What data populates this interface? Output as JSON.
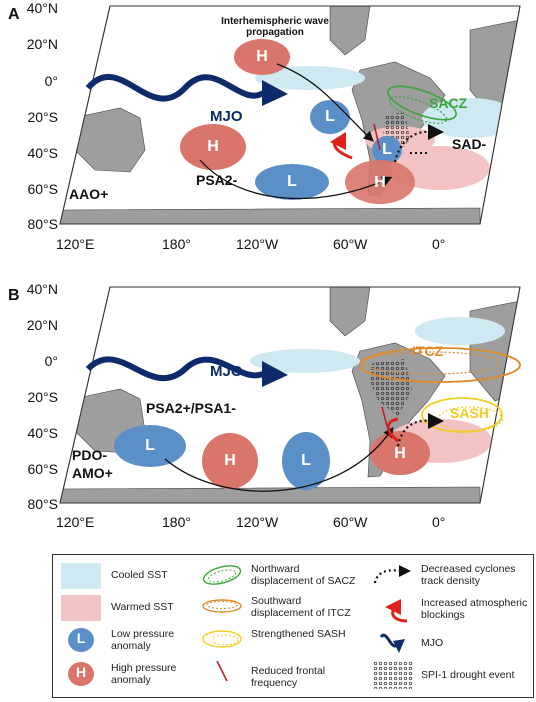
{
  "panel_a": {
    "letter": "A",
    "lat_labels": [
      "40°N",
      "20°N",
      "0°",
      "20°S",
      "40°S",
      "60°S",
      "80°S"
    ],
    "lon_labels": [
      "120°E",
      "180°",
      "120°W",
      "60°W",
      "0°"
    ],
    "wave_note": "Interhemispheric wave propagation",
    "mjo": "MJO",
    "sacz": "SACZ",
    "sad": "SAD-",
    "psa": "PSA2-",
    "aao": "AAO+",
    "high": "H",
    "low": "L"
  },
  "panel_b": {
    "letter": "B",
    "lat_labels": [
      "40°N",
      "20°N",
      "0°",
      "20°S",
      "40°S",
      "60°S",
      "80°S"
    ],
    "lon_labels": [
      "120°E",
      "180°",
      "120°W",
      "60°W",
      "0°"
    ],
    "mjo": "MJO",
    "itcz": "ITCZ",
    "sash": "SASH",
    "psa": "PSA2+/PSA1-",
    "pdo": "PDO-",
    "amo": "AMO+",
    "high": "H",
    "low": "L"
  },
  "legend": {
    "cooled_sst": "Cooled SST",
    "warmed_sst": "Warmed SST",
    "low_pressure": "Low pressure anomaly",
    "high_pressure": "High pressure anomaly",
    "low_mark": "L",
    "high_mark": "H",
    "sacz_disp": "Northward displacement of SACZ",
    "itcz_disp": "Southward displacement of ITCZ",
    "sash": "Strengthened SASH",
    "frontal": "Reduced frontal frequency",
    "cyclones": "Decreased cyclones track density",
    "blockings": "Increased atmospheric blockings",
    "mjo": "MJO",
    "spi": "SPI-1 drought event"
  },
  "colors": {
    "ocean": "#ffffff",
    "land": "#9e9e9e",
    "cooled": "#cfe9f3",
    "warmed": "#f3c3c3",
    "low": "#5b8fc7",
    "high": "#d9756a",
    "mjo": "#0d2a6b",
    "sacz": "#3aa63a",
    "itcz": "#e08a2a",
    "sash": "#f2cc1f",
    "block": "#e0201b"
  }
}
